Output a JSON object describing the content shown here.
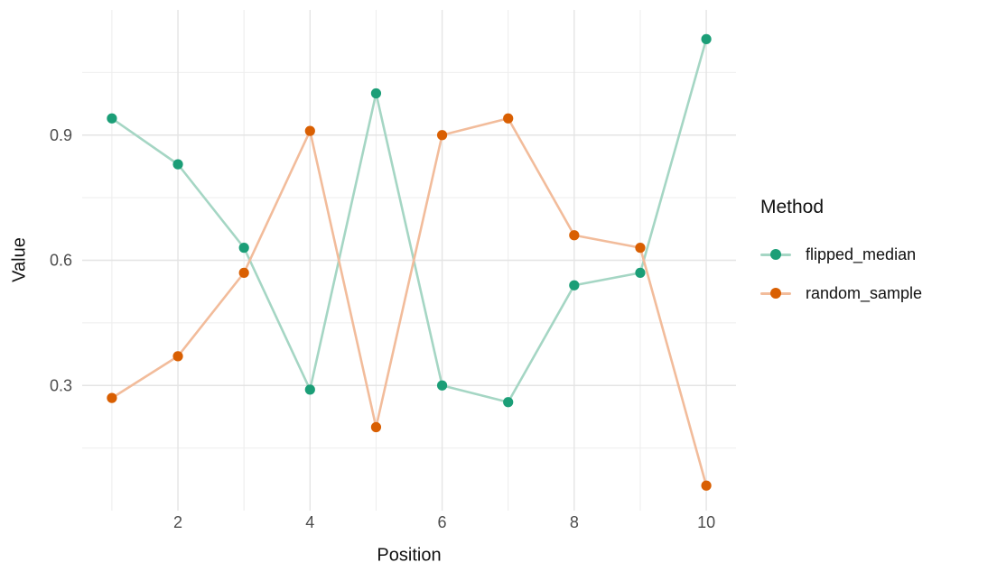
{
  "chart_data": {
    "type": "line",
    "title": "",
    "xlabel": "Position",
    "ylabel": "Value",
    "legend_title": "Method",
    "legend_position": "right",
    "grid": true,
    "background": "#ffffff",
    "axis_text_color": "#4d4d4d",
    "axis_title_color": "#111111",
    "grid_major_color": "#e4e4e4",
    "grid_minor_color": "#eeeeee",
    "x": [
      1,
      2,
      3,
      4,
      5,
      6,
      7,
      8,
      9,
      10
    ],
    "x_ticks": [
      2,
      4,
      6,
      8,
      10
    ],
    "x_minor_ticks": [
      1,
      3,
      5,
      7,
      9
    ],
    "y_ticks": [
      0.3,
      0.6,
      0.9
    ],
    "y_minor_ticks": [
      0.15,
      0.45,
      0.75,
      1.05
    ],
    "xlim": [
      0.55,
      10.45
    ],
    "ylim": [
      0.0,
      1.2
    ],
    "series": [
      {
        "name": "flipped_median",
        "point_color": "#1b9e77",
        "line_color": "#a5d6c4",
        "values": [
          0.94,
          0.83,
          0.63,
          0.29,
          1.0,
          0.3,
          0.26,
          0.54,
          0.57,
          1.13
        ]
      },
      {
        "name": "random_sample",
        "point_color": "#d95f02",
        "line_color": "#f2bc9b",
        "values": [
          0.27,
          0.37,
          0.57,
          0.91,
          0.2,
          0.9,
          0.94,
          0.66,
          0.63,
          0.06
        ]
      }
    ]
  }
}
